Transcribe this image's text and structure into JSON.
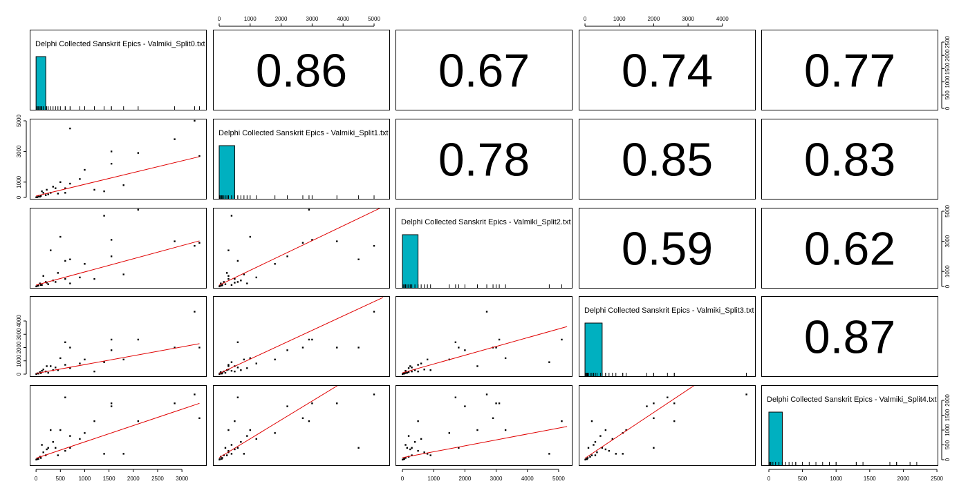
{
  "chart_data": {
    "type": "pairs",
    "variables": [
      {
        "name": "Delphi Collected Sanskrit Epics - Valmiki_Split0.txt",
        "xlim": [
          -130,
          3510
        ],
        "xticks": [
          0,
          500,
          1000,
          1500,
          2000,
          2500,
          3000
        ],
        "ylim": [
          -78,
          2969
        ],
        "yticks": [
          0,
          500,
          1000,
          1500,
          2000,
          2500
        ],
        "hist": {
          "bins": [
            0,
            200
          ],
          "heights": [
            1
          ],
          "ylim": [
            0,
            1.5
          ]
        }
      },
      {
        "name": "Delphi Collected Sanskrit Epics - Valmiki_Split1.txt",
        "xlim": [
          -201,
          5513
        ],
        "xticks": [
          0,
          1000,
          2000,
          3000,
          4000,
          5000
        ],
        "ylim": [
          -135,
          5135
        ],
        "yticks": [
          0,
          1000,
          3000,
          5000
        ],
        "hist": {
          "bins": [
            0,
            500
          ],
          "heights": [
            1
          ],
          "ylim": [
            0,
            1.5
          ]
        }
      },
      {
        "name": "Delphi Collected Sanskrit Epics - Valmiki_Split2.txt",
        "xlim": [
          -222,
          5444
        ],
        "xticks": [
          0,
          1000,
          2000,
          3000,
          4000,
          5000
        ],
        "ylim": [
          -138,
          5229
        ],
        "yticks": [
          0,
          1000,
          3000,
          5000
        ],
        "hist": {
          "bins": [
            0,
            500
          ],
          "heights": [
            1
          ],
          "ylim": [
            0,
            1.5
          ]
        }
      },
      {
        "name": "Delphi Collected Sanskrit Epics - Valmiki_Split3.txt",
        "xlim": [
          -182,
          4970
        ],
        "xticks": [
          0,
          1000,
          2000,
          3000,
          4000
        ],
        "ylim": [
          -208,
          5870
        ],
        "yticks": [
          0,
          1000,
          2000,
          3000,
          4000
        ],
        "hist": {
          "bins": [
            0,
            500
          ],
          "heights": [
            1
          ],
          "ylim": [
            0,
            1.5
          ]
        }
      },
      {
        "name": "Delphi Collected Sanskrit Epics - Valmiki_Split4.txt",
        "xlim": [
          -113,
          2520
        ],
        "xticks": [
          0,
          500,
          1000,
          1500,
          2000,
          2500
        ],
        "ylim": [
          -209,
          2512
        ],
        "yticks": [
          0,
          500,
          1000,
          1500,
          2000
        ],
        "hist": {
          "bins": [
            0,
            200
          ],
          "heights": [
            1
          ],
          "ylim": [
            0,
            1.5
          ]
        }
      }
    ],
    "correlations": [
      [
        0.86,
        0.67,
        0.74,
        0.77
      ],
      [
        0.78,
        0.85,
        0.83
      ],
      [
        0.59,
        0.62
      ],
      [
        0.87
      ]
    ],
    "observations": [
      [
        3260,
        5000,
        2700,
        4700,
        2200
      ],
      [
        3360,
        2700,
        2900,
        2000,
        1400
      ],
      [
        2850,
        3800,
        3000,
        2000,
        1900
      ],
      [
        2100,
        2900,
        5100,
        2600,
        1300
      ],
      [
        1550,
        3000,
        3100,
        2600,
        1900
      ],
      [
        1550,
        2200,
        2000,
        1800,
        1800
      ],
      [
        1000,
        1800,
        1500,
        1100,
        900
      ],
      [
        1400,
        400,
        4700,
        900,
        200
      ],
      [
        700,
        4500,
        1800,
        2000,
        400
      ],
      [
        500,
        1000,
        3300,
        1200,
        1000
      ],
      [
        1800,
        800,
        800,
        1100,
        200
      ],
      [
        1200,
        500,
        500,
        200,
        1300
      ],
      [
        600,
        600,
        1700,
        2400,
        2100
      ],
      [
        300,
        300,
        2400,
        600,
        1000
      ],
      [
        100,
        100,
        100,
        80,
        60
      ],
      [
        200,
        150,
        300,
        200,
        150
      ],
      [
        50,
        80,
        60,
        40,
        30
      ],
      [
        400,
        600,
        300,
        500,
        400
      ],
      [
        150,
        300,
        700,
        350,
        250
      ],
      [
        250,
        200,
        150,
        100,
        400
      ],
      [
        80,
        50,
        200,
        150,
        100
      ],
      [
        350,
        700,
        400,
        300,
        600
      ],
      [
        600,
        300,
        500,
        700,
        300
      ],
      [
        120,
        400,
        100,
        250,
        500
      ],
      [
        900,
        1200,
        600,
        800,
        700
      ],
      [
        30,
        20,
        40,
        60,
        20
      ],
      [
        450,
        250,
        900,
        300,
        150
      ],
      [
        700,
        900,
        200,
        450,
        800
      ],
      [
        220,
        500,
        250,
        600,
        350
      ],
      [
        5,
        10,
        5,
        10,
        5
      ]
    ],
    "fits": [
      [
        {
          "x": [
            0,
            3360
          ],
          "y": [
            90,
            2660
          ]
        }
      ],
      [
        {
          "x": [
            0,
            3360
          ],
          "y": [
            90,
            3030
          ]
        },
        {
          "x": [
            0,
            5220
          ],
          "y": [
            90,
            5230
          ]
        }
      ],
      [
        {
          "x": [
            0,
            3360
          ],
          "y": [
            50,
            2290
          ]
        },
        {
          "x": [
            0,
            5290
          ],
          "y": [
            50,
            5770
          ]
        },
        {
          "x": [
            0,
            5270
          ],
          "y": [
            100,
            3580
          ]
        }
      ],
      [
        {
          "x": [
            0,
            3360
          ],
          "y": [
            50,
            1900
          ]
        },
        {
          "x": [
            0,
            3840
          ],
          "y": [
            70,
            2510
          ]
        },
        {
          "x": [
            0,
            5270
          ],
          "y": [
            70,
            1120
          ]
        },
        {
          "x": [
            0,
            3190
          ],
          "y": [
            50,
            2510
          ]
        }
      ]
    ],
    "point_color": "#000000",
    "fit_color": "#e00000",
    "hist_color": "#00b0c0"
  }
}
